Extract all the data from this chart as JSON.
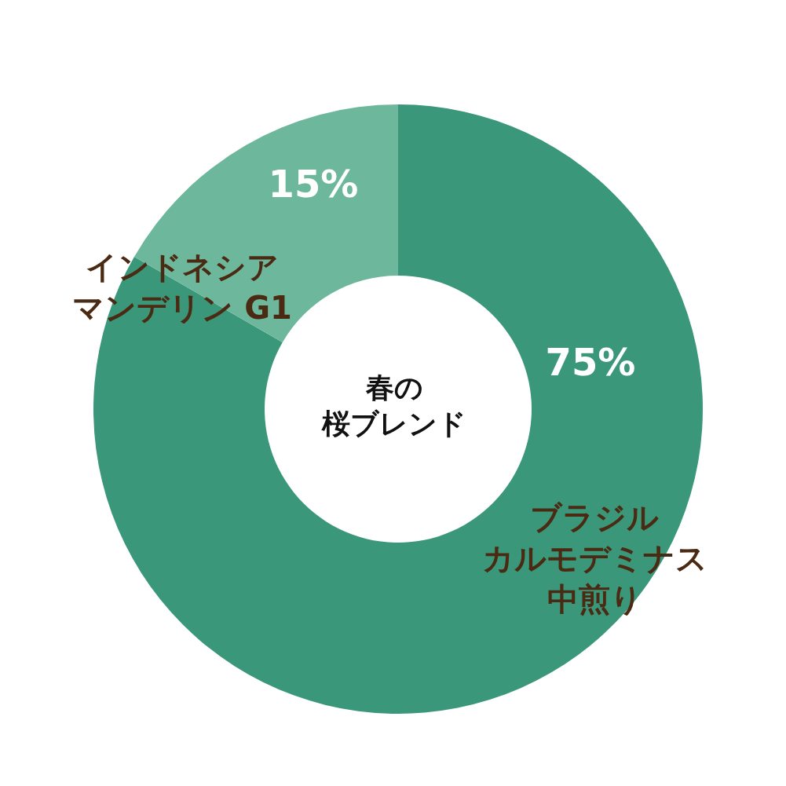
{
  "chart_data": {
    "type": "donut",
    "title": "春の桜ブレンド",
    "categories": [
      "ブラジルカルモデミナス中煎り",
      "インドネシアマンデリン G1"
    ],
    "values": [
      75,
      15
    ],
    "value_labels": [
      "75%",
      "15%"
    ],
    "colors": [
      "#3a977a",
      "#6db89c"
    ]
  }
}
